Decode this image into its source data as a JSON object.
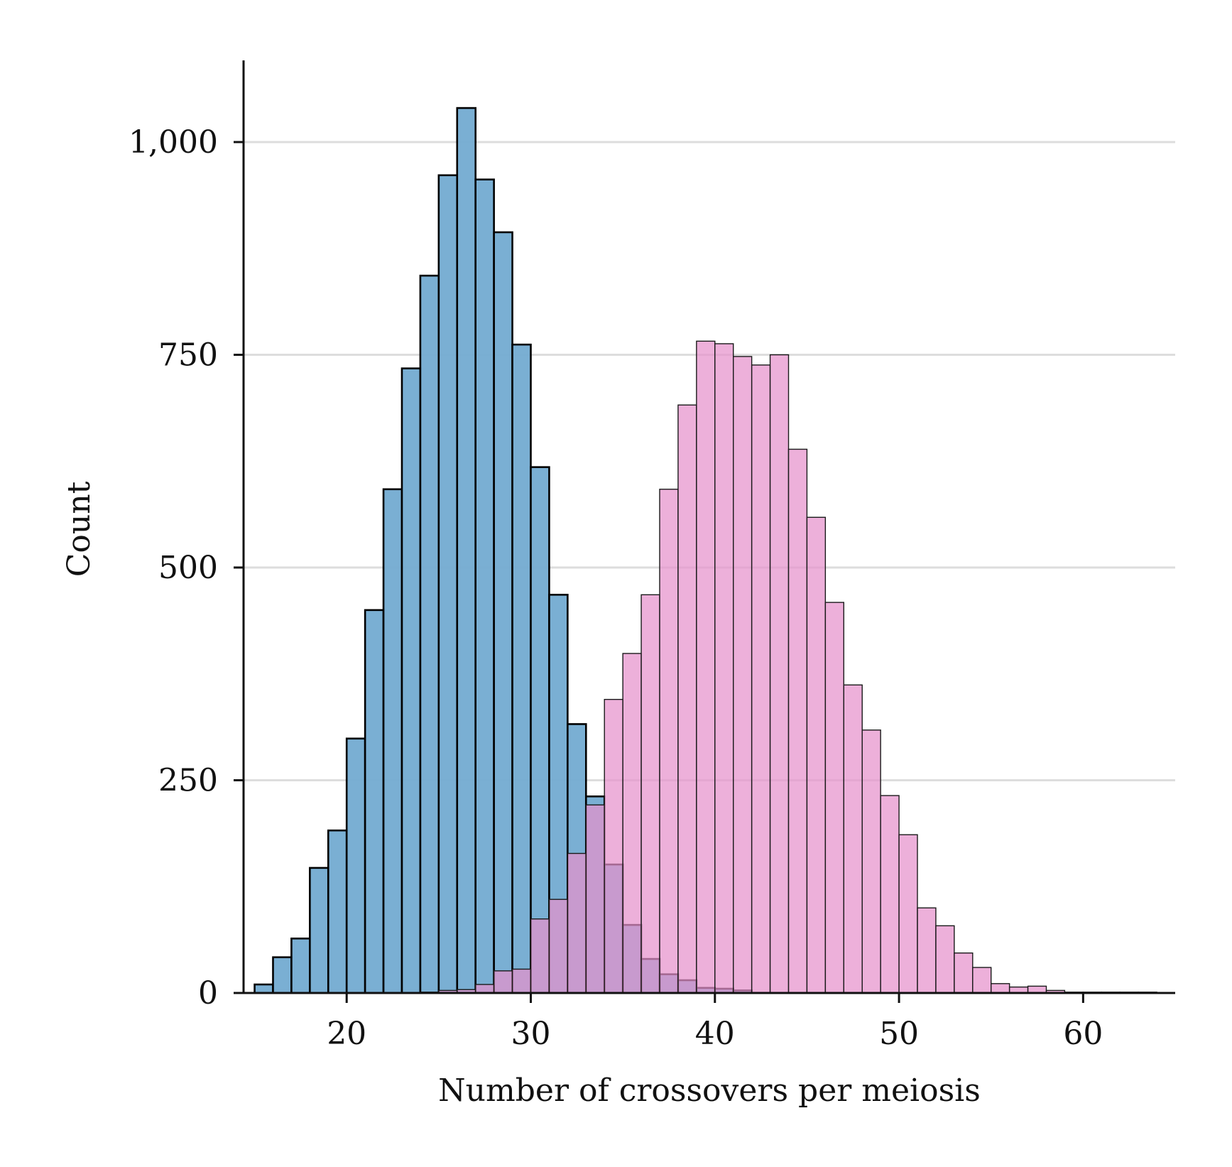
{
  "chart_data": {
    "type": "bar",
    "subtype": "overlapping-histogram",
    "title": "",
    "xlabel": "Number of crossovers per meiosis",
    "ylabel": "Count",
    "xlim": [
      14.4,
      65
    ],
    "ylim": [
      0,
      1090
    ],
    "x_ticks": [
      20,
      30,
      40,
      50,
      60
    ],
    "x_tick_labels": [
      "20",
      "30",
      "40",
      "50",
      "60"
    ],
    "y_ticks": [
      0,
      250,
      500,
      750,
      1000
    ],
    "y_tick_labels": [
      "0",
      "250",
      "500",
      "750",
      "1,000"
    ],
    "grid": "horizontal",
    "legend": "none",
    "bin_width": 1,
    "series": [
      {
        "color": "#76acd2",
        "bins": [
          {
            "x0": 15,
            "x1": 16,
            "count": 10
          },
          {
            "x0": 16,
            "x1": 17,
            "count": 42
          },
          {
            "x0": 17,
            "x1": 18,
            "count": 64
          },
          {
            "x0": 18,
            "x1": 19,
            "count": 147
          },
          {
            "x0": 19,
            "x1": 20,
            "count": 191
          },
          {
            "x0": 20,
            "x1": 21,
            "count": 299
          },
          {
            "x0": 21,
            "x1": 22,
            "count": 450
          },
          {
            "x0": 22,
            "x1": 23,
            "count": 592
          },
          {
            "x0": 23,
            "x1": 24,
            "count": 734
          },
          {
            "x0": 24,
            "x1": 25,
            "count": 843
          },
          {
            "x0": 25,
            "x1": 26,
            "count": 961
          },
          {
            "x0": 26,
            "x1": 27,
            "count": 1040
          },
          {
            "x0": 27,
            "x1": 28,
            "count": 956
          },
          {
            "x0": 28,
            "x1": 29,
            "count": 894
          },
          {
            "x0": 29,
            "x1": 30,
            "count": 762
          },
          {
            "x0": 30,
            "x1": 31,
            "count": 618
          },
          {
            "x0": 31,
            "x1": 32,
            "count": 468
          },
          {
            "x0": 32,
            "x1": 33,
            "count": 316
          },
          {
            "x0": 33,
            "x1": 34,
            "count": 231
          },
          {
            "x0": 34,
            "x1": 35,
            "count": 151
          },
          {
            "x0": 35,
            "x1": 36,
            "count": 80
          },
          {
            "x0": 36,
            "x1": 37,
            "count": 40
          },
          {
            "x0": 37,
            "x1": 38,
            "count": 22
          },
          {
            "x0": 38,
            "x1": 39,
            "count": 15
          },
          {
            "x0": 39,
            "x1": 40,
            "count": 6
          },
          {
            "x0": 40,
            "x1": 41,
            "count": 5
          },
          {
            "x0": 41,
            "x1": 42,
            "count": 3
          }
        ]
      },
      {
        "color": "#e691cc",
        "bins": [
          {
            "x0": 24,
            "x1": 25,
            "count": 1
          },
          {
            "x0": 25,
            "x1": 26,
            "count": 3
          },
          {
            "x0": 26,
            "x1": 27,
            "count": 4
          },
          {
            "x0": 27,
            "x1": 28,
            "count": 10
          },
          {
            "x0": 28,
            "x1": 29,
            "count": 26
          },
          {
            "x0": 29,
            "x1": 30,
            "count": 28
          },
          {
            "x0": 30,
            "x1": 31,
            "count": 87
          },
          {
            "x0": 31,
            "x1": 32,
            "count": 110
          },
          {
            "x0": 32,
            "x1": 33,
            "count": 164
          },
          {
            "x0": 33,
            "x1": 34,
            "count": 221
          },
          {
            "x0": 34,
            "x1": 35,
            "count": 345
          },
          {
            "x0": 35,
            "x1": 36,
            "count": 399
          },
          {
            "x0": 36,
            "x1": 37,
            "count": 468
          },
          {
            "x0": 37,
            "x1": 38,
            "count": 592
          },
          {
            "x0": 38,
            "x1": 39,
            "count": 691
          },
          {
            "x0": 39,
            "x1": 40,
            "count": 766
          },
          {
            "x0": 40,
            "x1": 41,
            "count": 763
          },
          {
            "x0": 41,
            "x1": 42,
            "count": 748
          },
          {
            "x0": 42,
            "x1": 43,
            "count": 738
          },
          {
            "x0": 43,
            "x1": 44,
            "count": 750
          },
          {
            "x0": 44,
            "x1": 45,
            "count": 639
          },
          {
            "x0": 45,
            "x1": 46,
            "count": 559
          },
          {
            "x0": 46,
            "x1": 47,
            "count": 459
          },
          {
            "x0": 47,
            "x1": 48,
            "count": 362
          },
          {
            "x0": 48,
            "x1": 49,
            "count": 309
          },
          {
            "x0": 49,
            "x1": 50,
            "count": 232
          },
          {
            "x0": 50,
            "x1": 51,
            "count": 186
          },
          {
            "x0": 51,
            "x1": 52,
            "count": 100
          },
          {
            "x0": 52,
            "x1": 53,
            "count": 79
          },
          {
            "x0": 53,
            "x1": 54,
            "count": 47
          },
          {
            "x0": 54,
            "x1": 55,
            "count": 30
          },
          {
            "x0": 55,
            "x1": 56,
            "count": 11
          },
          {
            "x0": 56,
            "x1": 57,
            "count": 7
          },
          {
            "x0": 57,
            "x1": 58,
            "count": 8
          },
          {
            "x0": 58,
            "x1": 59,
            "count": 3
          },
          {
            "x0": 59,
            "x1": 60,
            "count": 1
          },
          {
            "x0": 60,
            "x1": 61,
            "count": 1
          },
          {
            "x0": 61,
            "x1": 62,
            "count": 1
          },
          {
            "x0": 62,
            "x1": 63,
            "count": 1
          },
          {
            "x0": 63,
            "x1": 64,
            "count": 1
          }
        ]
      }
    ]
  }
}
